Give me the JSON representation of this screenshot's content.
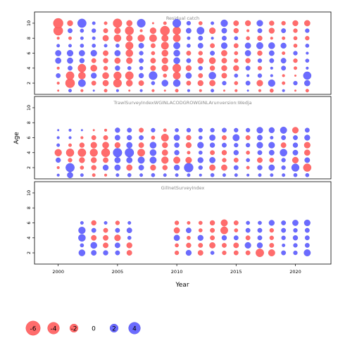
{
  "chart_data": {
    "type": "scatter",
    "description_free": true,
    "xlabel": "Year",
    "ylabel": "Age",
    "xlim": [
      1998,
      2023
    ],
    "ylim": [
      0.5,
      11.5
    ],
    "x_ticks": [
      2000,
      2005,
      2010,
      2015,
      2020
    ],
    "y_ticks": [
      2,
      4,
      6,
      8,
      10
    ],
    "panels": [
      {
        "title": "Residual catch",
        "years": [
          2000,
          2001,
          2002,
          2003,
          2004,
          2005,
          2006,
          2007,
          2008,
          2009,
          2010,
          2011,
          2012,
          2013,
          2014,
          2015,
          2016,
          2017,
          2018,
          2019,
          2020,
          2021
        ],
        "ages": [
          1,
          2,
          3,
          4,
          5,
          6,
          7,
          8,
          9,
          10
        ],
        "residuals": [
          [
            0.1,
            -0.3,
            0.2,
            -0.1,
            0.3,
            -0.2,
            0.1,
            -0.2,
            0.2,
            0.1,
            0.3,
            -0.2,
            0.2,
            -0.3,
            0.1,
            0.2,
            -0.1,
            0.2,
            0.4,
            -0.2,
            0.1,
            0.3
          ],
          [
            0.2,
            2.5,
            -1.6,
            0.6,
            1.0,
            2.0,
            1.2,
            0.8,
            -0.4,
            -1.2,
            -1.5,
            0.6,
            0.9,
            1.0,
            -0.5,
            0.4,
            -0.6,
            1.1,
            -1.4,
            0.3,
            -0.5,
            -1.0
          ],
          [
            -0.6,
            1.9,
            1.5,
            -0.9,
            1.2,
            1.7,
            1.9,
            -0.7,
            -2.0,
            0.4,
            1.6,
            -1.0,
            0.6,
            -1.5,
            0.8,
            -0.4,
            -0.2,
            -0.5,
            -0.2,
            0.2,
            0.1,
            -1.8
          ],
          [
            0.2,
            -0.6,
            1.9,
            1.2,
            0.5,
            -0.7,
            -0.4,
            -0.4,
            0.8,
            1.2,
            2.0,
            0.9,
            -0.5,
            0.7,
            0.9,
            0.9,
            -0.6,
            0.5,
            -0.2,
            -0.6,
            0.3,
            -0.2
          ],
          [
            -1.0,
            -1.0,
            -0.7,
            0.6,
            0.7,
            1.0,
            1.1,
            -0.6,
            0.8,
            1.1,
            -1.2,
            -0.6,
            1.0,
            1.2,
            0.8,
            0.5,
            0.7,
            -0.5,
            -0.6,
            -0.8,
            0.5,
            -0.4
          ],
          [
            -1.0,
            -1.1,
            -1.0,
            -1.1,
            0.8,
            -1.0,
            1.5,
            -0.5,
            0.4,
            1.2,
            -1.2,
            0.6,
            0.5,
            -0.6,
            1.0,
            0.4,
            -1.0,
            0.7,
            -0.8,
            0.3,
            -0.5,
            -0.2
          ],
          [
            -0.3,
            -0.3,
            -0.4,
            -0.4,
            -0.3,
            -0.4,
            1.7,
            -0.8,
            0.6,
            1.6,
            -1.3,
            -0.4,
            -0.8,
            0.6,
            -1.1,
            0.6,
            -1.0,
            -1.3,
            -1.2,
            -0.9,
            0.4,
            -0.4
          ],
          [
            0.2,
            0.3,
            -0.3,
            -0.3,
            1.0,
            1.5,
            1.1,
            1.4,
            1.6,
            1.3,
            1.6,
            -0.3,
            -0.6,
            -0.2,
            -0.6,
            -0.4,
            0.4,
            0.7,
            0.2,
            0.3,
            0.4,
            0.5
          ],
          [
            2.5,
            -0.6,
            -0.4,
            -0.5,
            0.6,
            1.1,
            2.1,
            0.2,
            1.1,
            2.5,
            1.8,
            -0.8,
            -1.6,
            1.1,
            -0.8,
            0.7,
            0.2,
            -0.6,
            0.9,
            -0.6,
            0.5,
            -0.5
          ],
          [
            2.8,
            0.9,
            -2.2,
            -0.3,
            0.3,
            2.3,
            1.0,
            -2.0,
            0.1,
            0.3,
            -2.0,
            -0.5,
            0.4,
            -0.3,
            -1.4,
            0.8,
            0.9,
            -1.1,
            0.7,
            0.5,
            0.9,
            1.0
          ]
        ]
      },
      {
        "title": "TrawlSurveyIndexWGINLACODGROWGINLArunversion:Wedja",
        "years": [
          2000,
          2001,
          2002,
          2003,
          2004,
          2005,
          2006,
          2007,
          2008,
          2009,
          2010,
          2011,
          2012,
          2013,
          2014,
          2015,
          2016,
          2017,
          2018,
          2019,
          2020,
          2021
        ],
        "ages": [
          1,
          2,
          3,
          4,
          5,
          6,
          7
        ],
        "residuals": [
          [
            -0.2,
            -1.0,
            -0.3,
            0.3,
            0.2,
            -0.3,
            -0.4,
            -0.3,
            -0.4,
            -0.3,
            -0.3,
            -0.3,
            -0.2,
            -0.4,
            -0.3,
            -0.3,
            -0.2,
            -0.3,
            -0.3,
            -0.3,
            -0.4,
            -0.4
          ],
          [
            0.2,
            -2.2,
            0.4,
            0.7,
            -0.9,
            -1.0,
            1.0,
            -0.8,
            0.9,
            0.7,
            -0.9,
            -2.4,
            -0.5,
            1.0,
            1.0,
            -0.6,
            0.3,
            -0.7,
            -1.0,
            -0.5,
            -1.7,
            1.8
          ],
          [
            -0.7,
            0.5,
            0.9,
            0.9,
            0.8,
            -1.0,
            -1.0,
            -1.3,
            -1.3,
            1.4,
            1.3,
            1.1,
            -0.9,
            -1.0,
            0.5,
            0.6,
            -0.4,
            0.8,
            0.6,
            -0.5,
            1.1,
            -0.8
          ],
          [
            1.4,
            1.8,
            1.9,
            1.7,
            2.1,
            -2.3,
            -2.3,
            1.6,
            -1.2,
            1.0,
            -0.7,
            0.3,
            -0.4,
            0.6,
            0.7,
            -0.7,
            0.4,
            -0.6,
            -0.8,
            -1.5,
            -0.8,
            1.0
          ],
          [
            -0.3,
            0.3,
            0.7,
            1.1,
            1.2,
            0.9,
            -1.0,
            0.8,
            -1.2,
            0.9,
            -0.7,
            0.9,
            -1.1,
            -0.7,
            -0.6,
            -0.5,
            -0.5,
            -1.1,
            -1.1,
            0.8,
            -0.7,
            1.1
          ],
          [
            -0.2,
            -0.2,
            0.2,
            0.6,
            0.6,
            -0.8,
            -0.7,
            -0.6,
            0.4,
            1.6,
            -1.0,
            0.7,
            -0.4,
            -1.0,
            0.6,
            -1.3,
            0.6,
            -0.8,
            -0.3,
            -0.6,
            -0.6,
            -0.9
          ],
          [
            -0.1,
            -0.2,
            -0.1,
            0.1,
            0.2,
            -0.7,
            -0.6,
            0.6,
            -0.5,
            0.3,
            -0.4,
            -0.5,
            -0.5,
            -0.5,
            -0.6,
            -0.5,
            -0.5,
            -1.1,
            -0.9,
            -1.3,
            1.1,
            -0.6
          ]
        ]
      },
      {
        "title": "GillnetSurveyIndex",
        "years": [
          2002,
          2003,
          2004,
          2005,
          2006,
          2010,
          2011,
          2012,
          2013,
          2014,
          2015,
          2016,
          2017,
          2018,
          2019,
          2020,
          2021
        ],
        "ages": [
          2,
          3,
          4,
          5,
          6
        ],
        "residuals": [
          [
            -1.2,
            -0.8,
            -0.7,
            -0.6,
            0.8,
            0.5,
            -0.9,
            0.8,
            -0.4,
            0.5,
            0.6,
            0.6,
            1.9,
            1.3,
            -0.6,
            -0.5,
            -1.3
          ],
          [
            -0.4,
            -1.2,
            0.8,
            -0.8,
            0.9,
            0.4,
            0.7,
            0.6,
            1.0,
            0.6,
            0.8,
            -1.1,
            -0.9,
            0.6,
            -0.3,
            -0.5,
            -0.6
          ],
          [
            -1.5,
            0.8,
            0.8,
            1.1,
            -0.4,
            -1.0,
            0.4,
            -0.9,
            0.6,
            -0.7,
            -0.6,
            0.6,
            -0.6,
            0.5,
            -0.5,
            -0.7,
            -0.6
          ],
          [
            -1.4,
            -0.6,
            0.6,
            -0.6,
            -0.8,
            1.0,
            -0.8,
            0.4,
            0.6,
            1.6,
            0.4,
            -0.6,
            -0.6,
            0.5,
            -0.6,
            -0.5,
            -0.6
          ],
          [
            -0.3,
            0.7,
            -0.3,
            0.5,
            -0.3,
            0.5,
            0.3,
            0.4,
            0.7,
            1.3,
            0.6,
            -0.4,
            -0.4,
            -0.9,
            -0.6,
            -1.0,
            -1.1
          ]
        ]
      }
    ],
    "legend": {
      "values": [
        -6,
        -4,
        -2,
        0,
        2,
        4
      ],
      "labels": [
        "-6",
        "-4",
        "-2",
        "0",
        "2",
        "4"
      ]
    },
    "colors": {
      "positive": "#ff6c6c",
      "negative": "#6b6bff",
      "positive_stroke": "#f03a3a",
      "negative_stroke": "#3a3ae0",
      "title": "#8a8a8a",
      "axis": "#000000"
    }
  }
}
